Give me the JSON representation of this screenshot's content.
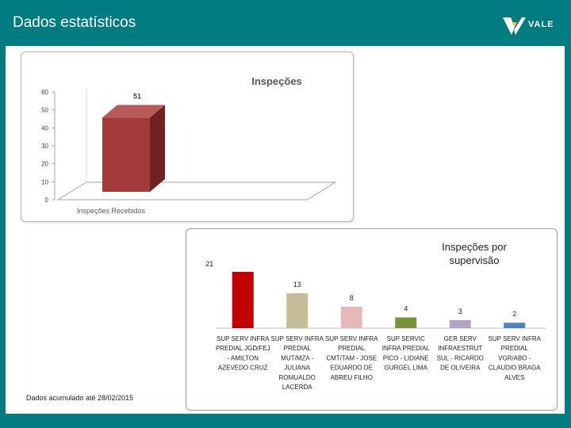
{
  "header": {
    "title": "Dados estatísticos",
    "logo_text": "VALE",
    "logo_icon": "vale-v-logo-icon"
  },
  "colors": {
    "background": "#007c80",
    "chart1_bar": "#a33a3a",
    "chart1_bar_top": "#b95a5a",
    "chart1_bar_side": "#6e2222"
  },
  "footnote": "Dados acumulado até 28/02/2015",
  "chart_data": [
    {
      "type": "bar",
      "title": "Inspeções",
      "categories": [
        "Inspeções Recebidos"
      ],
      "values": [
        51
      ],
      "data_labels": [
        "51"
      ],
      "ylim": [
        0,
        60
      ],
      "yticks": [
        "0",
        "10",
        "20",
        "30",
        "40",
        "50",
        "60"
      ],
      "style": "3d",
      "grid": false,
      "legend": "none"
    },
    {
      "type": "bar",
      "title": "Inspeções por supervisão",
      "title_lines": [
        "Inspeções por",
        "supervisão"
      ],
      "categories": [
        "SUP SERV INFRA PREDIAL JGD/FEJ - AMILTON AZEVEDO CRUZ",
        "SUP SERV INFRA PREDIAL MUT/MZA - JULIANA ROMUALDO LACERDA",
        "SUP SERV INFRA PREDIAL CMT/TAM - JOSE EDUARDO DE ABREU FILHO",
        "SUP SERVIC INFRA PREDIAL PICO - LIDIANE GURGEL LIMA",
        "GER SERV INFRAESTRUT SUL - RICARDO DE OLIVEIRA",
        "SUP SERV INFRA PREDIAL VGR/ABO - CLAUDIO BRAGA ALVES"
      ],
      "category_lines": [
        [
          "SUP SERV INFRA",
          "PREDIAL JGD/FEJ",
          "- AMILTON",
          "AZEVEDO CRUZ"
        ],
        [
          "SUP SERV INFRA",
          "PREDIAL",
          "MUT/MZA -",
          "JULIANA",
          "ROMUALDO",
          "LACERDA"
        ],
        [
          "SUP SERV INFRA",
          "PREDIAL",
          "CMT/TAM - JOSE",
          "EDUARDO DE",
          "ABREU FILHO"
        ],
        [
          "SUP SERVIC",
          "INFRA PREDIAL",
          "PICO - LIDIANE",
          "GURGEL LIMA"
        ],
        [
          "GER SERV",
          "INFRAESTRUT",
          "SUL - RICARDO",
          "DE OLIVEIRA"
        ],
        [
          "SUP SERV INFRA",
          "PREDIAL",
          "VGR/ABO -",
          "CLAUDIO BRAGA",
          "ALVES"
        ]
      ],
      "values": [
        21,
        13,
        8,
        4,
        3,
        2
      ],
      "data_labels": [
        "21",
        "13",
        "8",
        "4",
        "3",
        "2"
      ],
      "colors": [
        "#c00000",
        "#c4bd97",
        "#e6b9b8",
        "#77933c",
        "#b3a2c7",
        "#4f81bd"
      ],
      "grid": false,
      "legend": "none"
    }
  ]
}
